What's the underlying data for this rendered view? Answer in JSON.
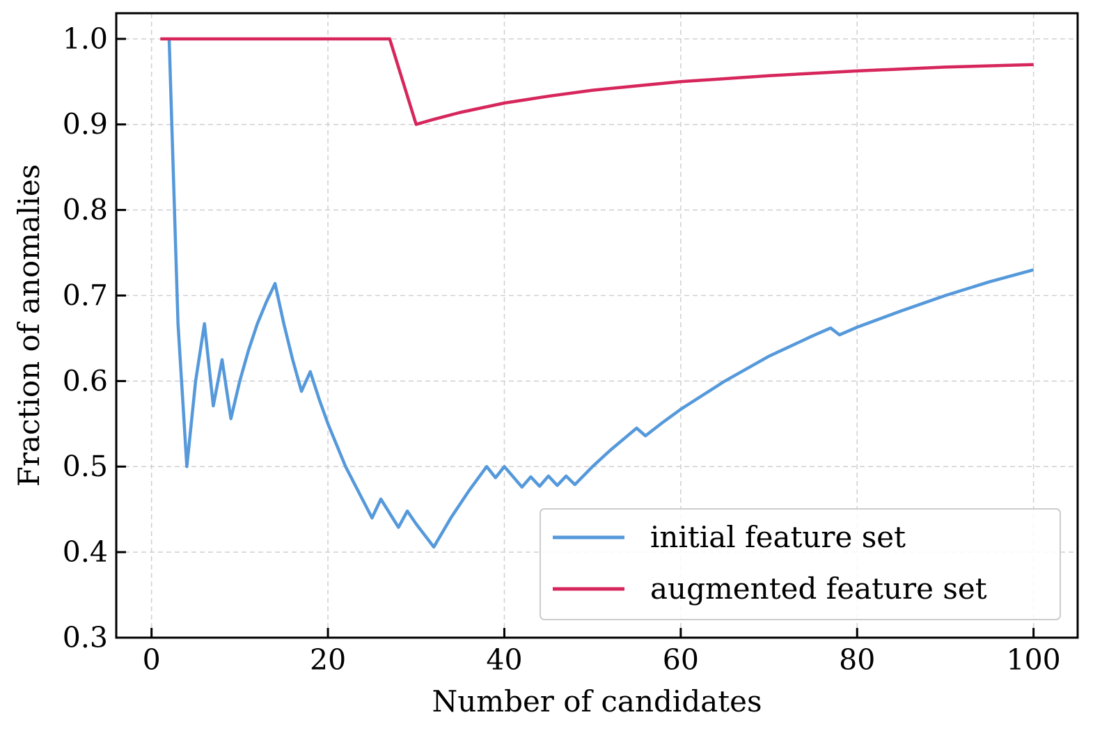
{
  "chart_data": {
    "type": "line",
    "title": "",
    "xlabel": "Number of candidates",
    "ylabel": "Fraction of anomalies",
    "xlim": [
      -4,
      105
    ],
    "ylim": [
      0.3,
      1.03
    ],
    "xticks": [
      0,
      20,
      40,
      60,
      80,
      100
    ],
    "yticks": [
      0.3,
      0.4,
      0.5,
      0.6,
      0.7,
      0.8,
      0.9,
      1.0
    ],
    "xtick_labels": [
      "0",
      "20",
      "40",
      "60",
      "80",
      "100"
    ],
    "ytick_labels": [
      "0.3",
      "0.4",
      "0.5",
      "0.6",
      "0.7",
      "0.8",
      "0.9",
      "1.0"
    ],
    "grid": true,
    "legend_position": "lower-right",
    "series": [
      {
        "name": "initial feature set",
        "color": "#5599db",
        "x": [
          2,
          3,
          4,
          5,
          6,
          7,
          8,
          9,
          10,
          11,
          12,
          13,
          14,
          15,
          16,
          17,
          18,
          19,
          20,
          22,
          25,
          26,
          28,
          29,
          30,
          32,
          34,
          36,
          38,
          39,
          40,
          42,
          43,
          44,
          45,
          46,
          47,
          48,
          50,
          52,
          55,
          56,
          58,
          60,
          65,
          70,
          75,
          77,
          78,
          80,
          85,
          90,
          95,
          100
        ],
        "y": [
          1.0,
          0.667,
          0.5,
          0.6,
          0.667,
          0.571,
          0.625,
          0.556,
          0.6,
          0.636,
          0.667,
          0.692,
          0.714,
          0.667,
          0.625,
          0.588,
          0.611,
          0.579,
          0.55,
          0.5,
          0.44,
          0.462,
          0.429,
          0.448,
          0.433,
          0.406,
          0.441,
          0.472,
          0.5,
          0.487,
          0.5,
          0.476,
          0.488,
          0.477,
          0.489,
          0.478,
          0.489,
          0.479,
          0.5,
          0.519,
          0.545,
          0.536,
          0.552,
          0.567,
          0.6,
          0.629,
          0.653,
          0.662,
          0.654,
          0.663,
          0.682,
          0.7,
          0.716,
          0.73
        ]
      },
      {
        "name": "augmented feature set",
        "color": "#d6265c",
        "x": [
          1,
          27,
          30,
          32,
          35,
          40,
          45,
          50,
          55,
          60,
          70,
          80,
          90,
          100
        ],
        "y": [
          1.0,
          1.0,
          0.9,
          0.906,
          0.914,
          0.925,
          0.933,
          0.94,
          0.945,
          0.95,
          0.957,
          0.9625,
          0.967,
          0.97
        ]
      }
    ]
  }
}
